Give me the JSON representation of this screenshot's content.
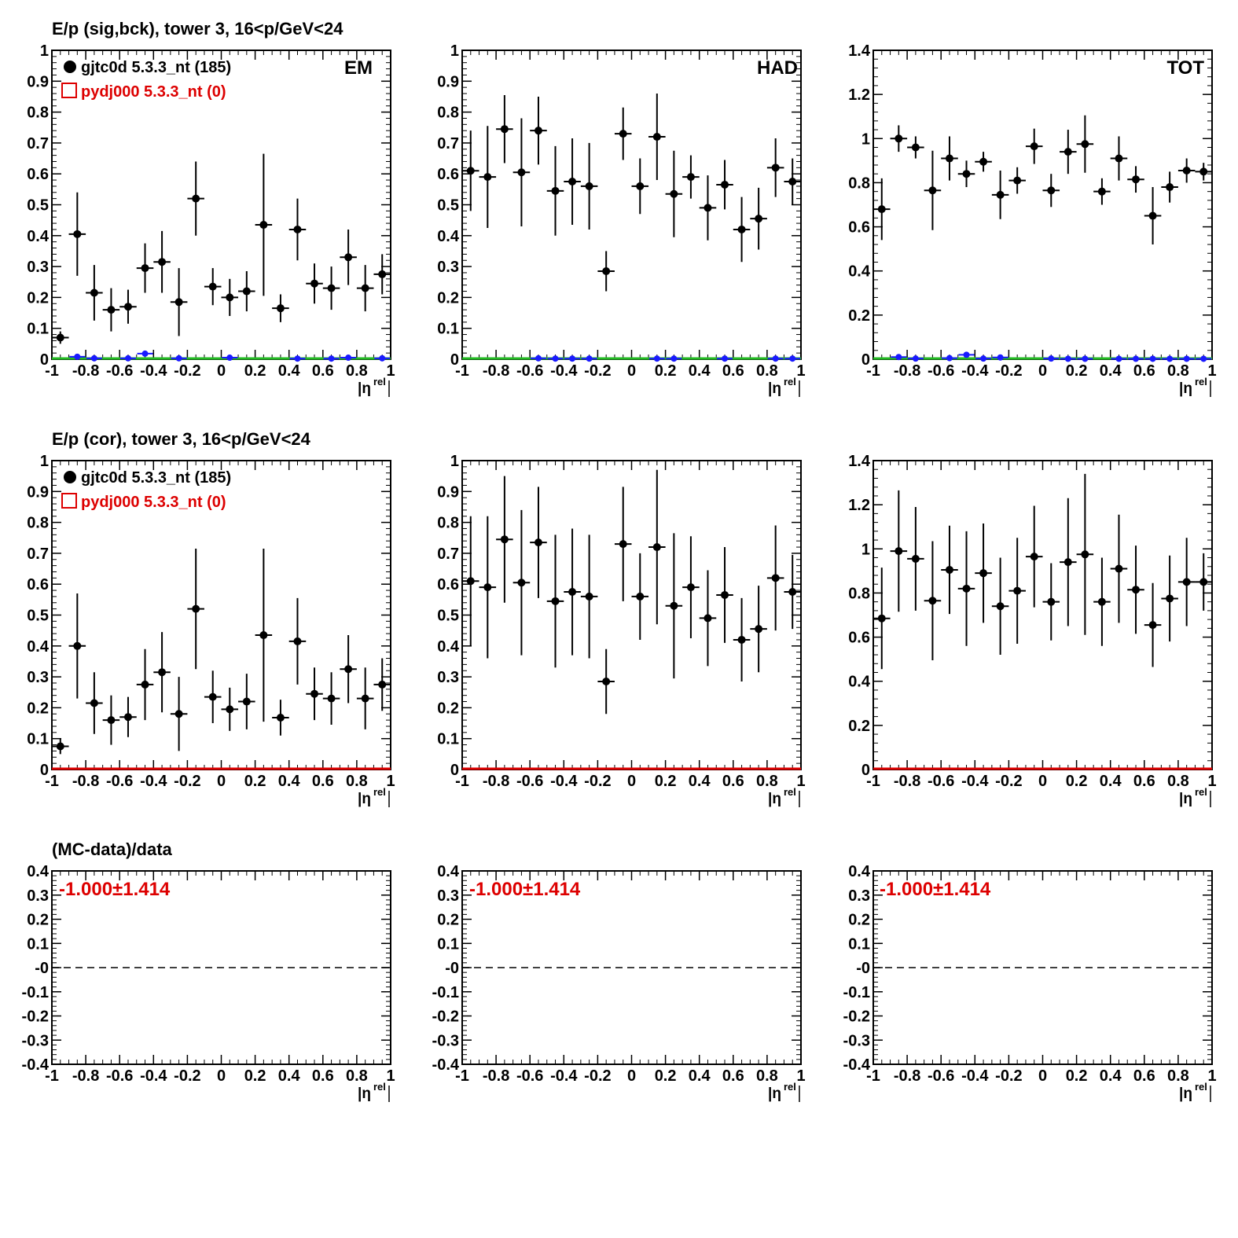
{
  "row_titles": {
    "raw": "E/p (sig,bck), tower 3, 16<p/GeV<24",
    "cor": "E/p (cor), tower 3, 16<p/GeV<24",
    "ratio": "(MC-data)/data"
  },
  "legend": {
    "data_label": "gjtc0d 5.3.3_nt (185)",
    "mc_label": "pydj000 5.3.3_nt (0)"
  },
  "panel_labels": {
    "em": "EM",
    "had": "HAD",
    "tot": "TOT"
  },
  "x_axis_label": "|η",
  "x_axis_label_sup": "rel",
  "ratio_text": "-1.000±1.414",
  "colors": {
    "data": "#000000",
    "mc": "#dd0000",
    "bck": "#1a1aff",
    "baseline_raw": "#22bb22",
    "baseline_cor": "#dd0000"
  },
  "chart_data": [
    {
      "id": "raw-em",
      "type": "scatter",
      "panel_label": "EM",
      "x": [
        -0.95,
        -0.85,
        -0.75,
        -0.65,
        -0.55,
        -0.45,
        -0.35,
        -0.25,
        -0.15,
        -0.05,
        0.05,
        0.15,
        0.25,
        0.35,
        0.45,
        0.55,
        0.65,
        0.75,
        0.85,
        0.95
      ],
      "y": [
        0.07,
        0.405,
        0.215,
        0.16,
        0.17,
        0.295,
        0.315,
        0.185,
        0.52,
        0.235,
        0.2,
        0.22,
        0.435,
        0.165,
        0.42,
        0.245,
        0.23,
        0.33,
        0.23,
        0.275
      ],
      "yerr": [
        0.02,
        0.135,
        0.09,
        0.07,
        0.055,
        0.08,
        0.1,
        0.11,
        0.12,
        0.06,
        0.06,
        0.065,
        0.23,
        0.045,
        0.1,
        0.065,
        0.07,
        0.09,
        0.075,
        0.065
      ],
      "bck_x": [
        -0.85,
        -0.75,
        -0.55,
        -0.45,
        -0.25,
        0.05,
        0.45,
        0.65,
        0.75,
        0.95
      ],
      "bck_y": [
        0.008,
        0.003,
        0.003,
        0.018,
        0.003,
        0.005,
        0.002,
        0.002,
        0.005,
        0.003
      ],
      "xlim": [
        -1,
        1
      ],
      "ylim": [
        0,
        1
      ],
      "yticks": [
        "0",
        "0.1",
        "0.2",
        "0.3",
        "0.4",
        "0.5",
        "0.6",
        "0.7",
        "0.8",
        "0.9",
        "1"
      ],
      "xticks": [
        "-1",
        "-0.8",
        "-0.6",
        "-0.4",
        "-0.2",
        "0",
        "0.2",
        "0.4",
        "0.6",
        "0.8",
        "1"
      ]
    },
    {
      "id": "raw-had",
      "type": "scatter",
      "panel_label": "HAD",
      "x": [
        -0.95,
        -0.85,
        -0.75,
        -0.65,
        -0.55,
        -0.45,
        -0.35,
        -0.25,
        -0.15,
        -0.05,
        0.05,
        0.15,
        0.25,
        0.35,
        0.45,
        0.55,
        0.65,
        0.75,
        0.85,
        0.95
      ],
      "y": [
        0.61,
        0.59,
        0.745,
        0.605,
        0.74,
        0.545,
        0.575,
        0.56,
        0.285,
        0.73,
        0.56,
        0.72,
        0.535,
        0.59,
        0.49,
        0.565,
        0.42,
        0.455,
        0.62,
        0.575
      ],
      "yerr": [
        0.13,
        0.165,
        0.11,
        0.175,
        0.11,
        0.145,
        0.14,
        0.14,
        0.065,
        0.085,
        0.09,
        0.14,
        0.14,
        0.07,
        0.105,
        0.08,
        0.105,
        0.1,
        0.095,
        0.075
      ],
      "bck_x": [
        -0.55,
        -0.45,
        -0.35,
        -0.25,
        0.15,
        0.25,
        0.55,
        0.85,
        0.95
      ],
      "bck_y": [
        0.003,
        0.002,
        0.002,
        0.002,
        0.002,
        0.002,
        0.002,
        0.002,
        0.002
      ],
      "xlim": [
        -1,
        1
      ],
      "ylim": [
        0,
        1
      ],
      "yticks": [
        "0",
        "0.1",
        "0.2",
        "0.3",
        "0.4",
        "0.5",
        "0.6",
        "0.7",
        "0.8",
        "0.9",
        "1"
      ],
      "xticks": [
        "-1",
        "-0.8",
        "-0.6",
        "-0.4",
        "-0.2",
        "0",
        "0.2",
        "0.4",
        "0.6",
        "0.8",
        "1"
      ]
    },
    {
      "id": "raw-tot",
      "type": "scatter",
      "panel_label": "TOT",
      "x": [
        -0.95,
        -0.85,
        -0.75,
        -0.65,
        -0.55,
        -0.45,
        -0.35,
        -0.25,
        -0.15,
        -0.05,
        0.05,
        0.15,
        0.25,
        0.35,
        0.45,
        0.55,
        0.65,
        0.75,
        0.85,
        0.95
      ],
      "y": [
        0.68,
        1.0,
        0.96,
        0.765,
        0.91,
        0.84,
        0.895,
        0.745,
        0.81,
        0.965,
        0.765,
        0.94,
        0.975,
        0.76,
        0.91,
        0.815,
        0.65,
        0.78,
        0.855,
        0.85
      ],
      "yerr": [
        0.14,
        0.06,
        0.05,
        0.18,
        0.1,
        0.06,
        0.045,
        0.11,
        0.06,
        0.08,
        0.075,
        0.1,
        0.13,
        0.06,
        0.1,
        0.06,
        0.13,
        0.07,
        0.055,
        0.04
      ],
      "bck_x": [
        -0.85,
        -0.75,
        -0.55,
        -0.45,
        -0.35,
        -0.25,
        0.05,
        0.15,
        0.25,
        0.45,
        0.55,
        0.65,
        0.75,
        0.85,
        0.95
      ],
      "bck_y": [
        0.01,
        0.003,
        0.005,
        0.02,
        0.003,
        0.008,
        0.003,
        0.002,
        0.002,
        0.002,
        0.002,
        0.002,
        0.002,
        0.002,
        0.002
      ],
      "xlim": [
        -1,
        1
      ],
      "ylim": [
        0,
        1.4
      ],
      "yticks": [
        "0",
        "0.2",
        "0.4",
        "0.6",
        "0.8",
        "1",
        "1.2",
        "1.4"
      ],
      "xticks": [
        "-1",
        "-0.8",
        "-0.6",
        "-0.4",
        "-0.2",
        "0",
        "0.2",
        "0.4",
        "0.6",
        "0.8",
        "1"
      ]
    },
    {
      "id": "cor-em",
      "type": "scatter",
      "panel_label": "",
      "x": [
        -0.95,
        -0.85,
        -0.75,
        -0.65,
        -0.55,
        -0.45,
        -0.35,
        -0.25,
        -0.15,
        -0.05,
        0.05,
        0.15,
        0.25,
        0.35,
        0.45,
        0.55,
        0.65,
        0.75,
        0.85,
        0.95
      ],
      "y": [
        0.075,
        0.4,
        0.215,
        0.16,
        0.17,
        0.275,
        0.315,
        0.18,
        0.52,
        0.235,
        0.195,
        0.22,
        0.435,
        0.168,
        0.415,
        0.245,
        0.23,
        0.325,
        0.23,
        0.275
      ],
      "yerr": [
        0.025,
        0.17,
        0.1,
        0.08,
        0.065,
        0.115,
        0.13,
        0.12,
        0.195,
        0.085,
        0.07,
        0.09,
        0.28,
        0.058,
        0.14,
        0.085,
        0.085,
        0.11,
        0.1,
        0.085
      ],
      "bck_x": [],
      "bck_y": [],
      "xlim": [
        -1,
        1
      ],
      "ylim": [
        0,
        1
      ],
      "yticks": [
        "0",
        "0.1",
        "0.2",
        "0.3",
        "0.4",
        "0.5",
        "0.6",
        "0.7",
        "0.8",
        "0.9",
        "1"
      ],
      "xticks": [
        "-1",
        "-0.8",
        "-0.6",
        "-0.4",
        "-0.2",
        "0",
        "0.2",
        "0.4",
        "0.6",
        "0.8",
        "1"
      ]
    },
    {
      "id": "cor-had",
      "type": "scatter",
      "panel_label": "",
      "x": [
        -0.95,
        -0.85,
        -0.75,
        -0.65,
        -0.55,
        -0.45,
        -0.35,
        -0.25,
        -0.15,
        -0.05,
        0.05,
        0.15,
        0.25,
        0.35,
        0.45,
        0.55,
        0.65,
        0.75,
        0.85,
        0.95
      ],
      "y": [
        0.61,
        0.59,
        0.745,
        0.605,
        0.735,
        0.545,
        0.575,
        0.56,
        0.285,
        0.73,
        0.56,
        0.72,
        0.53,
        0.59,
        0.49,
        0.565,
        0.42,
        0.455,
        0.62,
        0.575
      ],
      "yerr": [
        0.21,
        0.23,
        0.205,
        0.235,
        0.18,
        0.215,
        0.205,
        0.2,
        0.105,
        0.185,
        0.14,
        0.25,
        0.235,
        0.165,
        0.155,
        0.155,
        0.135,
        0.14,
        0.17,
        0.12
      ],
      "bck_x": [],
      "bck_y": [],
      "xlim": [
        -1,
        1
      ],
      "ylim": [
        0,
        1
      ],
      "yticks": [
        "0",
        "0.1",
        "0.2",
        "0.3",
        "0.4",
        "0.5",
        "0.6",
        "0.7",
        "0.8",
        "0.9",
        "1"
      ],
      "xticks": [
        "-1",
        "-0.8",
        "-0.6",
        "-0.4",
        "-0.2",
        "0",
        "0.2",
        "0.4",
        "0.6",
        "0.8",
        "1"
      ]
    },
    {
      "id": "cor-tot",
      "type": "scatter",
      "panel_label": "",
      "x": [
        -0.95,
        -0.85,
        -0.75,
        -0.65,
        -0.55,
        -0.45,
        -0.35,
        -0.25,
        -0.15,
        -0.05,
        0.05,
        0.15,
        0.25,
        0.35,
        0.45,
        0.55,
        0.65,
        0.75,
        0.85,
        0.95
      ],
      "y": [
        0.685,
        0.99,
        0.955,
        0.765,
        0.905,
        0.82,
        0.89,
        0.74,
        0.81,
        0.965,
        0.76,
        0.94,
        0.975,
        0.76,
        0.91,
        0.815,
        0.655,
        0.775,
        0.85,
        0.85
      ],
      "yerr": [
        0.23,
        0.275,
        0.235,
        0.27,
        0.2,
        0.26,
        0.225,
        0.22,
        0.24,
        0.23,
        0.175,
        0.29,
        0.365,
        0.2,
        0.245,
        0.2,
        0.19,
        0.195,
        0.2,
        0.13
      ],
      "bck_x": [],
      "bck_y": [],
      "xlim": [
        -1,
        1
      ],
      "ylim": [
        0,
        1.4
      ],
      "yticks": [
        "0",
        "0.2",
        "0.4",
        "0.6",
        "0.8",
        "1",
        "1.2",
        "1.4"
      ],
      "xticks": [
        "-1",
        "-0.8",
        "-0.6",
        "-0.4",
        "-0.2",
        "0",
        "0.2",
        "0.4",
        "0.6",
        "0.8",
        "1"
      ]
    },
    {
      "id": "ratio-em",
      "type": "line",
      "panel_label": "",
      "reference_line": 0,
      "xlim": [
        -1,
        1
      ],
      "ylim": [
        -0.4,
        0.4
      ],
      "yticks": [
        "-0.4",
        "-0.3",
        "-0.2",
        "-0.1",
        "-0",
        "0.1",
        "0.2",
        "0.3",
        "0.4"
      ],
      "xticks": [
        "-1",
        "-0.8",
        "-0.6",
        "-0.4",
        "-0.2",
        "0",
        "0.2",
        "0.4",
        "0.6",
        "0.8",
        "1"
      ]
    },
    {
      "id": "ratio-had",
      "type": "line",
      "panel_label": "",
      "reference_line": 0,
      "xlim": [
        -1,
        1
      ],
      "ylim": [
        -0.4,
        0.4
      ],
      "yticks": [
        "-0.4",
        "-0.3",
        "-0.2",
        "-0.1",
        "-0",
        "0.1",
        "0.2",
        "0.3",
        "0.4"
      ],
      "xticks": [
        "-1",
        "-0.8",
        "-0.6",
        "-0.4",
        "-0.2",
        "0",
        "0.2",
        "0.4",
        "0.6",
        "0.8",
        "1"
      ]
    },
    {
      "id": "ratio-tot",
      "type": "line",
      "panel_label": "",
      "reference_line": 0,
      "xlim": [
        -1,
        1
      ],
      "ylim": [
        -0.4,
        0.4
      ],
      "yticks": [
        "-0.4",
        "-0.3",
        "-0.2",
        "-0.1",
        "-0",
        "0.1",
        "0.2",
        "0.3",
        "0.4"
      ],
      "xticks": [
        "-1",
        "-0.8",
        "-0.6",
        "-0.4",
        "-0.2",
        "0",
        "0.2",
        "0.4",
        "0.6",
        "0.8",
        "1"
      ]
    }
  ]
}
